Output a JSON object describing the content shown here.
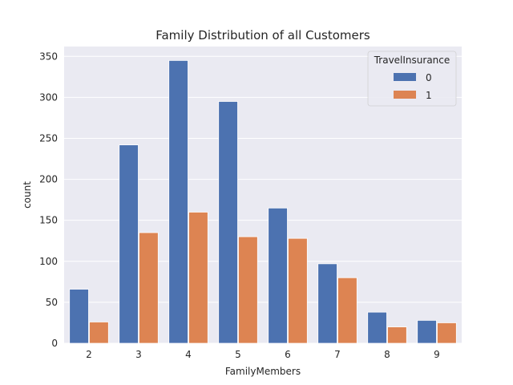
{
  "chart_data": {
    "type": "bar",
    "title": "Family Distribution of all Customers",
    "xlabel": "FamilyMembers",
    "ylabel": "count",
    "categories": [
      "2",
      "3",
      "4",
      "5",
      "6",
      "7",
      "8",
      "9"
    ],
    "series": [
      {
        "name": "0",
        "values": [
          66,
          242,
          345,
          295,
          165,
          97,
          38,
          28
        ],
        "color": "#4c72b0"
      },
      {
        "name": "1",
        "values": [
          26,
          135,
          160,
          130,
          128,
          80,
          20,
          25
        ],
        "color": "#dd8452"
      }
    ],
    "ylim": [
      0,
      362
    ],
    "yticks": [
      0,
      50,
      100,
      150,
      200,
      250,
      300,
      350
    ],
    "grid": true,
    "legend": {
      "title": "TravelInsurance",
      "placement": "top-right"
    },
    "background": "#eaeaf2"
  }
}
